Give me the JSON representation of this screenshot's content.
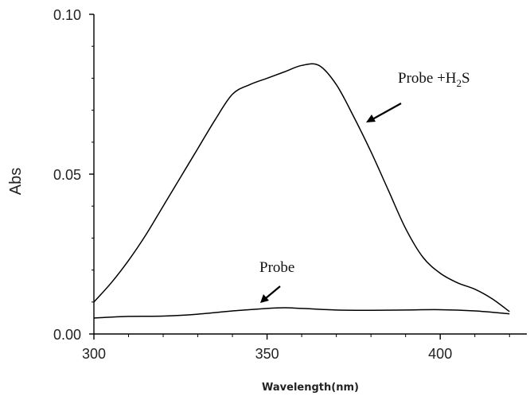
{
  "chart_data": {
    "type": "line",
    "xlabel": "Wavelength(nm)",
    "ylabel": "Abs",
    "xlim": [
      300,
      425
    ],
    "ylim": [
      0.0,
      0.1
    ],
    "x_ticks": [
      300,
      350,
      400
    ],
    "x_tick_labels": [
      "300",
      "350",
      "400"
    ],
    "y_ticks": [
      0.0,
      0.05,
      0.1
    ],
    "y_tick_labels": [
      "0.00",
      "0.05",
      "0.10"
    ],
    "grid": false,
    "line_color": "#000000",
    "series": [
      {
        "label": "Probe +H2S",
        "x": [
          300,
          305,
          310,
          315,
          320,
          325,
          330,
          335,
          340,
          345,
          350,
          355,
          360,
          365,
          370,
          375,
          380,
          385,
          390,
          395,
          400,
          405,
          410,
          415,
          420
        ],
        "y": [
          0.01,
          0.016,
          0.023,
          0.031,
          0.04,
          0.049,
          0.058,
          0.067,
          0.075,
          0.078,
          0.08,
          0.082,
          0.084,
          0.084,
          0.078,
          0.068,
          0.057,
          0.045,
          0.033,
          0.024,
          0.019,
          0.016,
          0.014,
          0.011,
          0.007
        ]
      },
      {
        "label": "Probe",
        "x": [
          300,
          310,
          320,
          330,
          340,
          350,
          355,
          360,
          370,
          380,
          390,
          400,
          410,
          420
        ],
        "y": [
          0.005,
          0.0055,
          0.0056,
          0.0062,
          0.0072,
          0.008,
          0.0082,
          0.008,
          0.0075,
          0.0074,
          0.0075,
          0.0076,
          0.0072,
          0.0063
        ]
      }
    ],
    "annotations": [
      {
        "text_main": "Probe +H",
        "text_sub": "2",
        "text_tail": "S",
        "series": "Probe +H2S"
      },
      {
        "text": "Probe",
        "series": "Probe"
      }
    ]
  }
}
